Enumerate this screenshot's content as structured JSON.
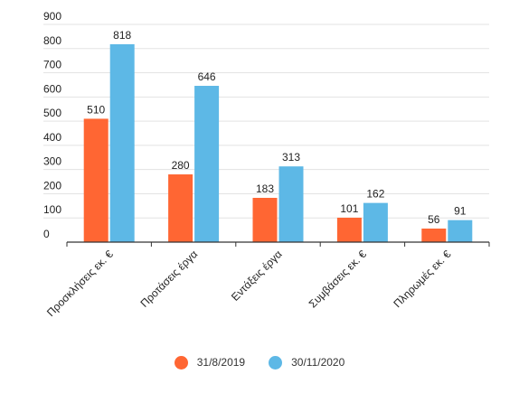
{
  "chart_data": {
    "type": "bar",
    "categories": [
      "Προσκλήσεις εκ. €",
      "Προτάσεις έργα",
      "Εντάξεις έργα",
      "Συμβάσεις εκ. €",
      "Πληρωμές εκ. €"
    ],
    "series": [
      {
        "name": "31/8/2019",
        "color": "#FF6633",
        "values": [
          510,
          280,
          183,
          101,
          56
        ]
      },
      {
        "name": "30/11/2020",
        "color": "#5DB8E6",
        "values": [
          818,
          646,
          313,
          162,
          91
        ]
      }
    ],
    "yticks": [
      0,
      100,
      200,
      300,
      400,
      500,
      600,
      700,
      800,
      900
    ],
    "ylim": [
      0,
      900
    ],
    "grid": true,
    "legend_position": "bottom",
    "data_labels": true
  }
}
